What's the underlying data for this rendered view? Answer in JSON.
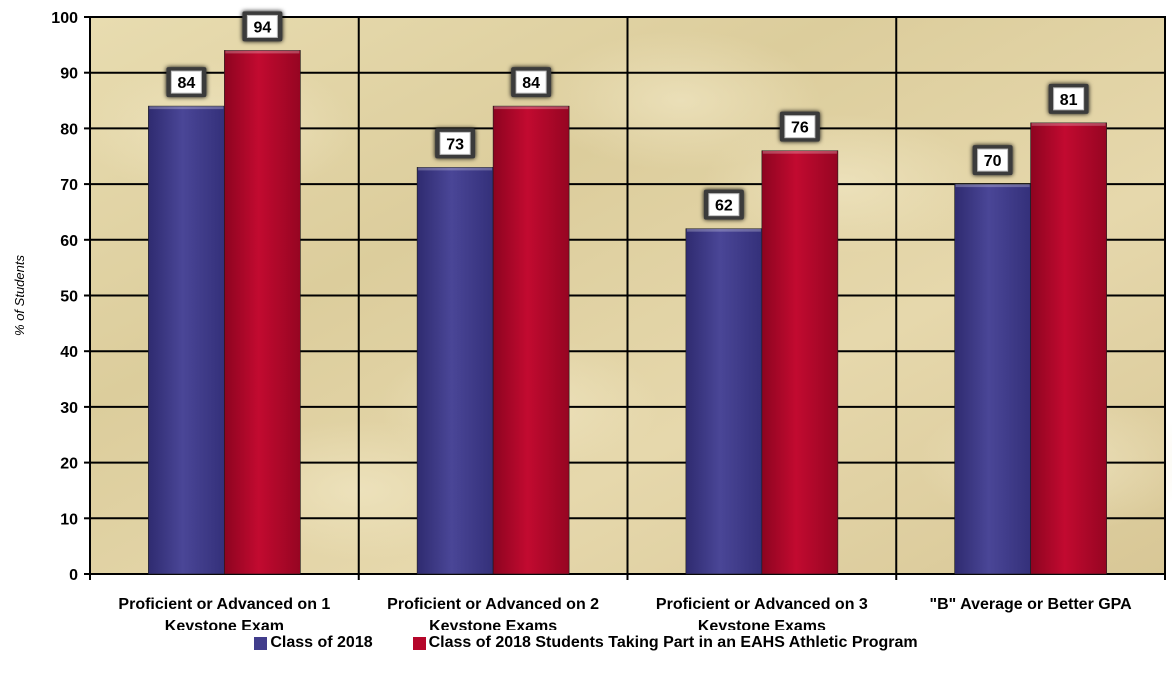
{
  "chart_data": {
    "type": "bar",
    "ylabel": "% of Students",
    "xlabel": "",
    "ylim": [
      0,
      100
    ],
    "yticks": [
      0,
      10,
      20,
      30,
      40,
      50,
      60,
      70,
      80,
      90,
      100
    ],
    "grid": true,
    "legend_position": "bottom",
    "categories": [
      [
        "Proficient or Advanced on 1",
        "Keystone Exam"
      ],
      [
        "Proficient or Advanced on 2",
        "Keystone Exams"
      ],
      [
        "Proficient or Advanced on 3",
        "Keystone Exams"
      ],
      [
        "\"B\" Average or Better GPA"
      ]
    ],
    "series": [
      {
        "name": "Class of 2018",
        "color": "#413d8c",
        "values": [
          84,
          73,
          62,
          70
        ]
      },
      {
        "name": "Class of 2018 Students Taking Part in an EAHS Athletic Program",
        "color": "#b5062a",
        "values": [
          94,
          84,
          76,
          81
        ]
      }
    ],
    "background_texture": "beige parchment"
  }
}
